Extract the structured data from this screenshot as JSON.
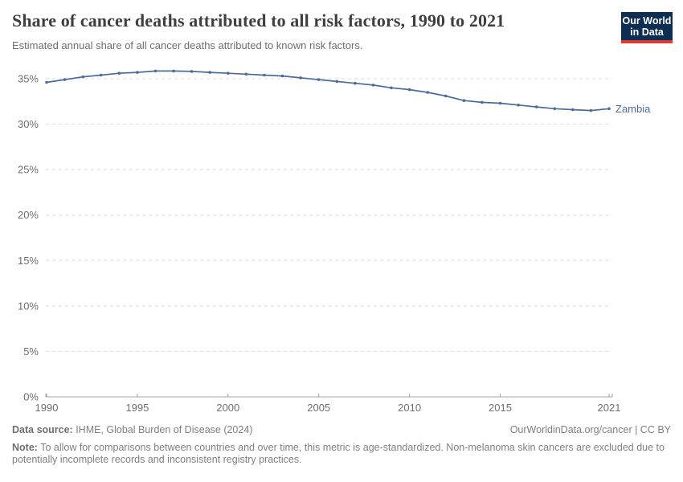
{
  "header": {
    "title": "Share of cancer deaths attributed to all risk factors, 1990 to 2021",
    "subtitle": "Estimated annual share of all cancer deaths attributed to known risk factors.",
    "logo": {
      "line1": "Our World",
      "line2": "in Data",
      "bg_color": "#0d2d52",
      "accent_color": "#dc3a32"
    }
  },
  "chart_data": {
    "type": "line",
    "title": "Share of cancer deaths attributed to all risk factors, 1990 to 2021",
    "xlabel": "",
    "ylabel": "",
    "xlim": [
      1990,
      2021
    ],
    "ylim": [
      0,
      36.3
    ],
    "grid": "horizontal-dashed",
    "legend": "line-end-label",
    "x_ticks": [
      1990,
      1995,
      2000,
      2005,
      2010,
      2015,
      2021
    ],
    "y_ticks": [
      0,
      5,
      10,
      15,
      20,
      25,
      30,
      35
    ],
    "y_tick_suffix": "%",
    "x": [
      1990,
      1991,
      1992,
      1993,
      1994,
      1995,
      1996,
      1997,
      1998,
      1999,
      2000,
      2001,
      2002,
      2003,
      2004,
      2005,
      2006,
      2007,
      2008,
      2009,
      2010,
      2011,
      2012,
      2013,
      2014,
      2015,
      2016,
      2017,
      2018,
      2019,
      2020,
      2021
    ],
    "series": [
      {
        "name": "Zambia",
        "color": "#4c6a9c",
        "values": [
          34.6,
          34.9,
          35.2,
          35.4,
          35.6,
          35.7,
          35.85,
          35.85,
          35.8,
          35.7,
          35.6,
          35.5,
          35.4,
          35.3,
          35.1,
          34.9,
          34.7,
          34.5,
          34.3,
          34.0,
          33.8,
          33.5,
          33.1,
          32.6,
          32.4,
          32.3,
          32.1,
          31.9,
          31.7,
          31.6,
          31.5,
          31.7
        ]
      }
    ],
    "colors": {
      "gridline": "#dcdcdc",
      "axis": "#a3a3a3",
      "tick_label": "#6e6e6e"
    }
  },
  "footer": {
    "source_label": "Data source:",
    "source_text": " IHME, Global Burden of Disease (2024)",
    "attribution": "OurWorldinData.org/cancer | CC BY",
    "note_label": "Note:",
    "note_text": " To allow for comparisons between countries and over time, this metric is age-standardized. Non-melanoma skin cancers are excluded due to potentially incomplete records and inconsistent registry practices."
  }
}
